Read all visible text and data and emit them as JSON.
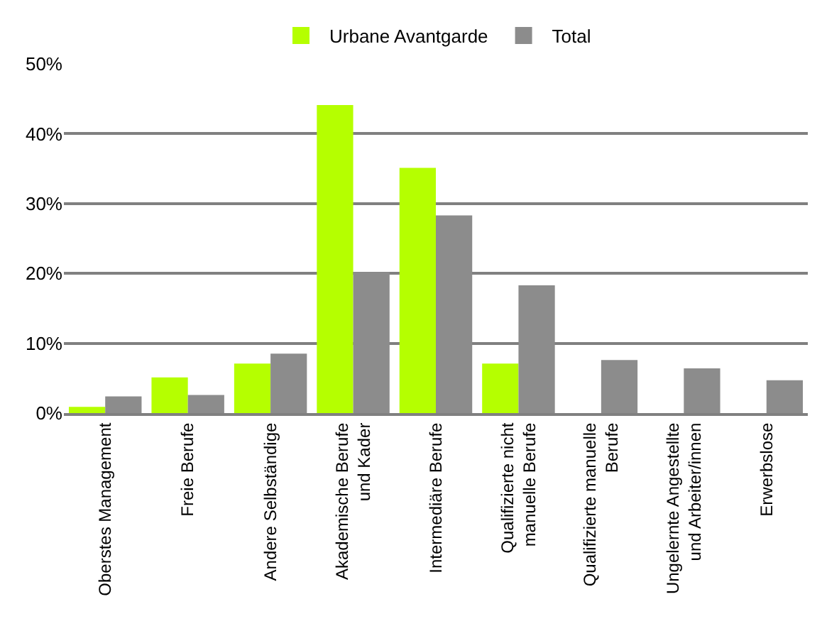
{
  "chart_data": {
    "type": "bar",
    "categories": [
      "Oberstes Management",
      "Freie Berufe",
      "Andere Selbständige",
      "Akademische Berufe\nund Kader",
      "Intermediäre Berufe",
      "Qualifizierte nicht\nmanuelle Berufe",
      "Qualifizierte manuelle\nBerufe",
      "Ungelernte Angestellte\nund Arbeiter/innen",
      "Erwerbslose"
    ],
    "series": [
      {
        "name": "Urbane Avantgarde",
        "color": "#b5ff00",
        "values": [
          0.9,
          5.1,
          7.1,
          44.1,
          35.1,
          7.1,
          0,
          0,
          0
        ]
      },
      {
        "name": "Total",
        "color": "#8c8c8c",
        "values": [
          2.4,
          2.6,
          8.5,
          20.2,
          28.3,
          18.3,
          7.6,
          6.4,
          4.7
        ]
      }
    ],
    "ylim": [
      0,
      50
    ],
    "yticks": [
      {
        "value": 0,
        "label": "0%"
      },
      {
        "value": 10,
        "label": "10%"
      },
      {
        "value": 20,
        "label": "20%"
      },
      {
        "value": 30,
        "label": "30%"
      },
      {
        "value": 40,
        "label": "40%"
      },
      {
        "value": 50,
        "label": "50%"
      }
    ],
    "grid": "y",
    "legend": "top"
  }
}
